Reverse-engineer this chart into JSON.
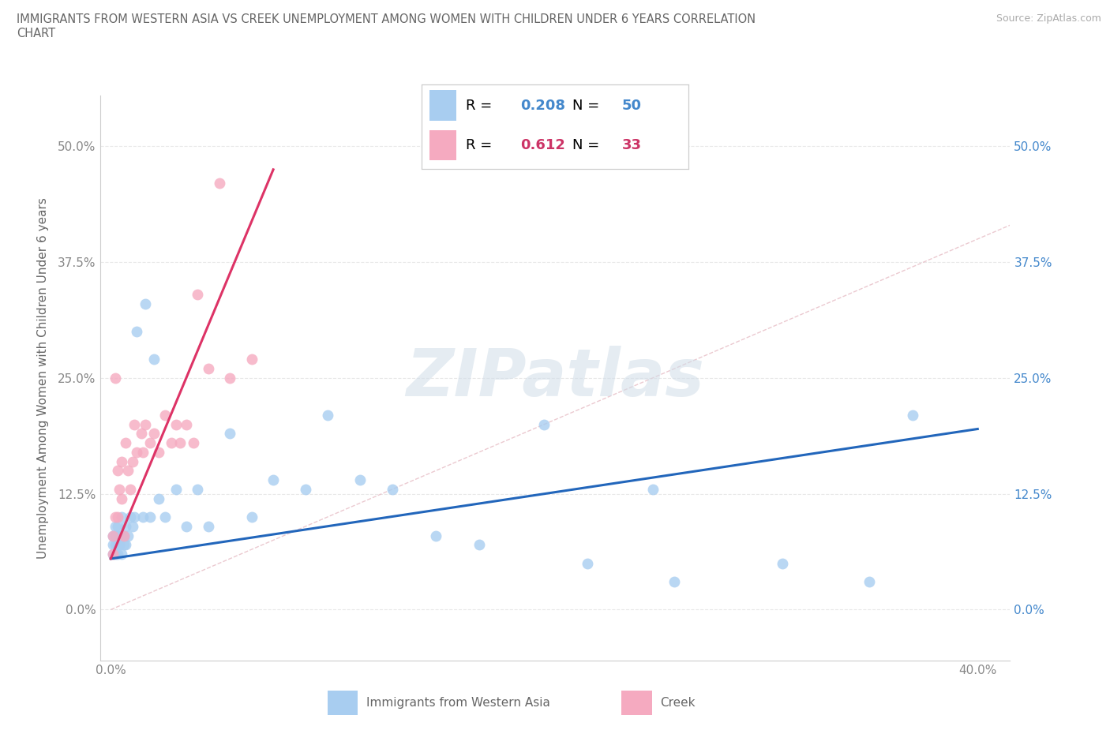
{
  "title_line1": "IMMIGRANTS FROM WESTERN ASIA VS CREEK UNEMPLOYMENT AMONG WOMEN WITH CHILDREN UNDER 6 YEARS CORRELATION",
  "title_line2": "CHART",
  "source": "Source: ZipAtlas.com",
  "ylabel": "Unemployment Among Women with Children Under 6 years",
  "watermark": "ZIPatlas",
  "xlim": [
    -0.005,
    0.415
  ],
  "ylim": [
    -0.055,
    0.555
  ],
  "yticks": [
    0.0,
    0.125,
    0.25,
    0.375,
    0.5
  ],
  "ytick_labels": [
    "0.0%",
    "12.5%",
    "25.0%",
    "37.5%",
    "50.0%"
  ],
  "xtick_pos": [
    0.0,
    0.1,
    0.2,
    0.3,
    0.4
  ],
  "xtick_labels": [
    "0.0%",
    "",
    "",
    "",
    "40.0%"
  ],
  "blue_series": {
    "name": "Immigrants from Western Asia",
    "dot_color": "#a8cdf0",
    "line_color": "#2266bb",
    "R": 0.208,
    "N": 50,
    "x": [
      0.001,
      0.001,
      0.001,
      0.002,
      0.002,
      0.002,
      0.002,
      0.003,
      0.003,
      0.003,
      0.004,
      0.004,
      0.005,
      0.005,
      0.005,
      0.006,
      0.006,
      0.007,
      0.007,
      0.008,
      0.009,
      0.01,
      0.011,
      0.012,
      0.015,
      0.016,
      0.018,
      0.02,
      0.022,
      0.025,
      0.03,
      0.035,
      0.04,
      0.045,
      0.055,
      0.065,
      0.075,
      0.09,
      0.1,
      0.115,
      0.13,
      0.15,
      0.17,
      0.2,
      0.22,
      0.25,
      0.26,
      0.31,
      0.35,
      0.37
    ],
    "y": [
      0.06,
      0.07,
      0.08,
      0.06,
      0.07,
      0.08,
      0.09,
      0.06,
      0.07,
      0.09,
      0.07,
      0.08,
      0.06,
      0.08,
      0.1,
      0.07,
      0.08,
      0.07,
      0.09,
      0.08,
      0.1,
      0.09,
      0.1,
      0.3,
      0.1,
      0.33,
      0.1,
      0.27,
      0.12,
      0.1,
      0.13,
      0.09,
      0.13,
      0.09,
      0.19,
      0.1,
      0.14,
      0.13,
      0.21,
      0.14,
      0.13,
      0.08,
      0.07,
      0.2,
      0.05,
      0.13,
      0.03,
      0.05,
      0.03,
      0.21
    ],
    "trend_x": [
      0.0,
      0.4
    ],
    "trend_y": [
      0.055,
      0.195
    ]
  },
  "pink_series": {
    "name": "Creek",
    "dot_color": "#f5aac0",
    "line_color": "#dd3366",
    "R": 0.612,
    "N": 33,
    "x": [
      0.001,
      0.001,
      0.002,
      0.002,
      0.003,
      0.003,
      0.004,
      0.005,
      0.005,
      0.006,
      0.007,
      0.008,
      0.009,
      0.01,
      0.011,
      0.012,
      0.014,
      0.015,
      0.016,
      0.018,
      0.02,
      0.022,
      0.025,
      0.028,
      0.03,
      0.032,
      0.035,
      0.038,
      0.04,
      0.045,
      0.05,
      0.055,
      0.065
    ],
    "y": [
      0.06,
      0.08,
      0.1,
      0.25,
      0.1,
      0.15,
      0.13,
      0.12,
      0.16,
      0.08,
      0.18,
      0.15,
      0.13,
      0.16,
      0.2,
      0.17,
      0.19,
      0.17,
      0.2,
      0.18,
      0.19,
      0.17,
      0.21,
      0.18,
      0.2,
      0.18,
      0.2,
      0.18,
      0.34,
      0.26,
      0.46,
      0.25,
      0.27
    ],
    "trend_x": [
      0.0,
      0.075
    ],
    "trend_y": [
      0.055,
      0.475
    ]
  },
  "diag_color": "#e8c0c8",
  "grid_color": "#e8e8e8",
  "label_color": "#666666",
  "tick_color": "#888888",
  "blue_label_color": "#4488cc",
  "pink_label_color": "#cc3366",
  "right_axis_color": "#4488cc"
}
